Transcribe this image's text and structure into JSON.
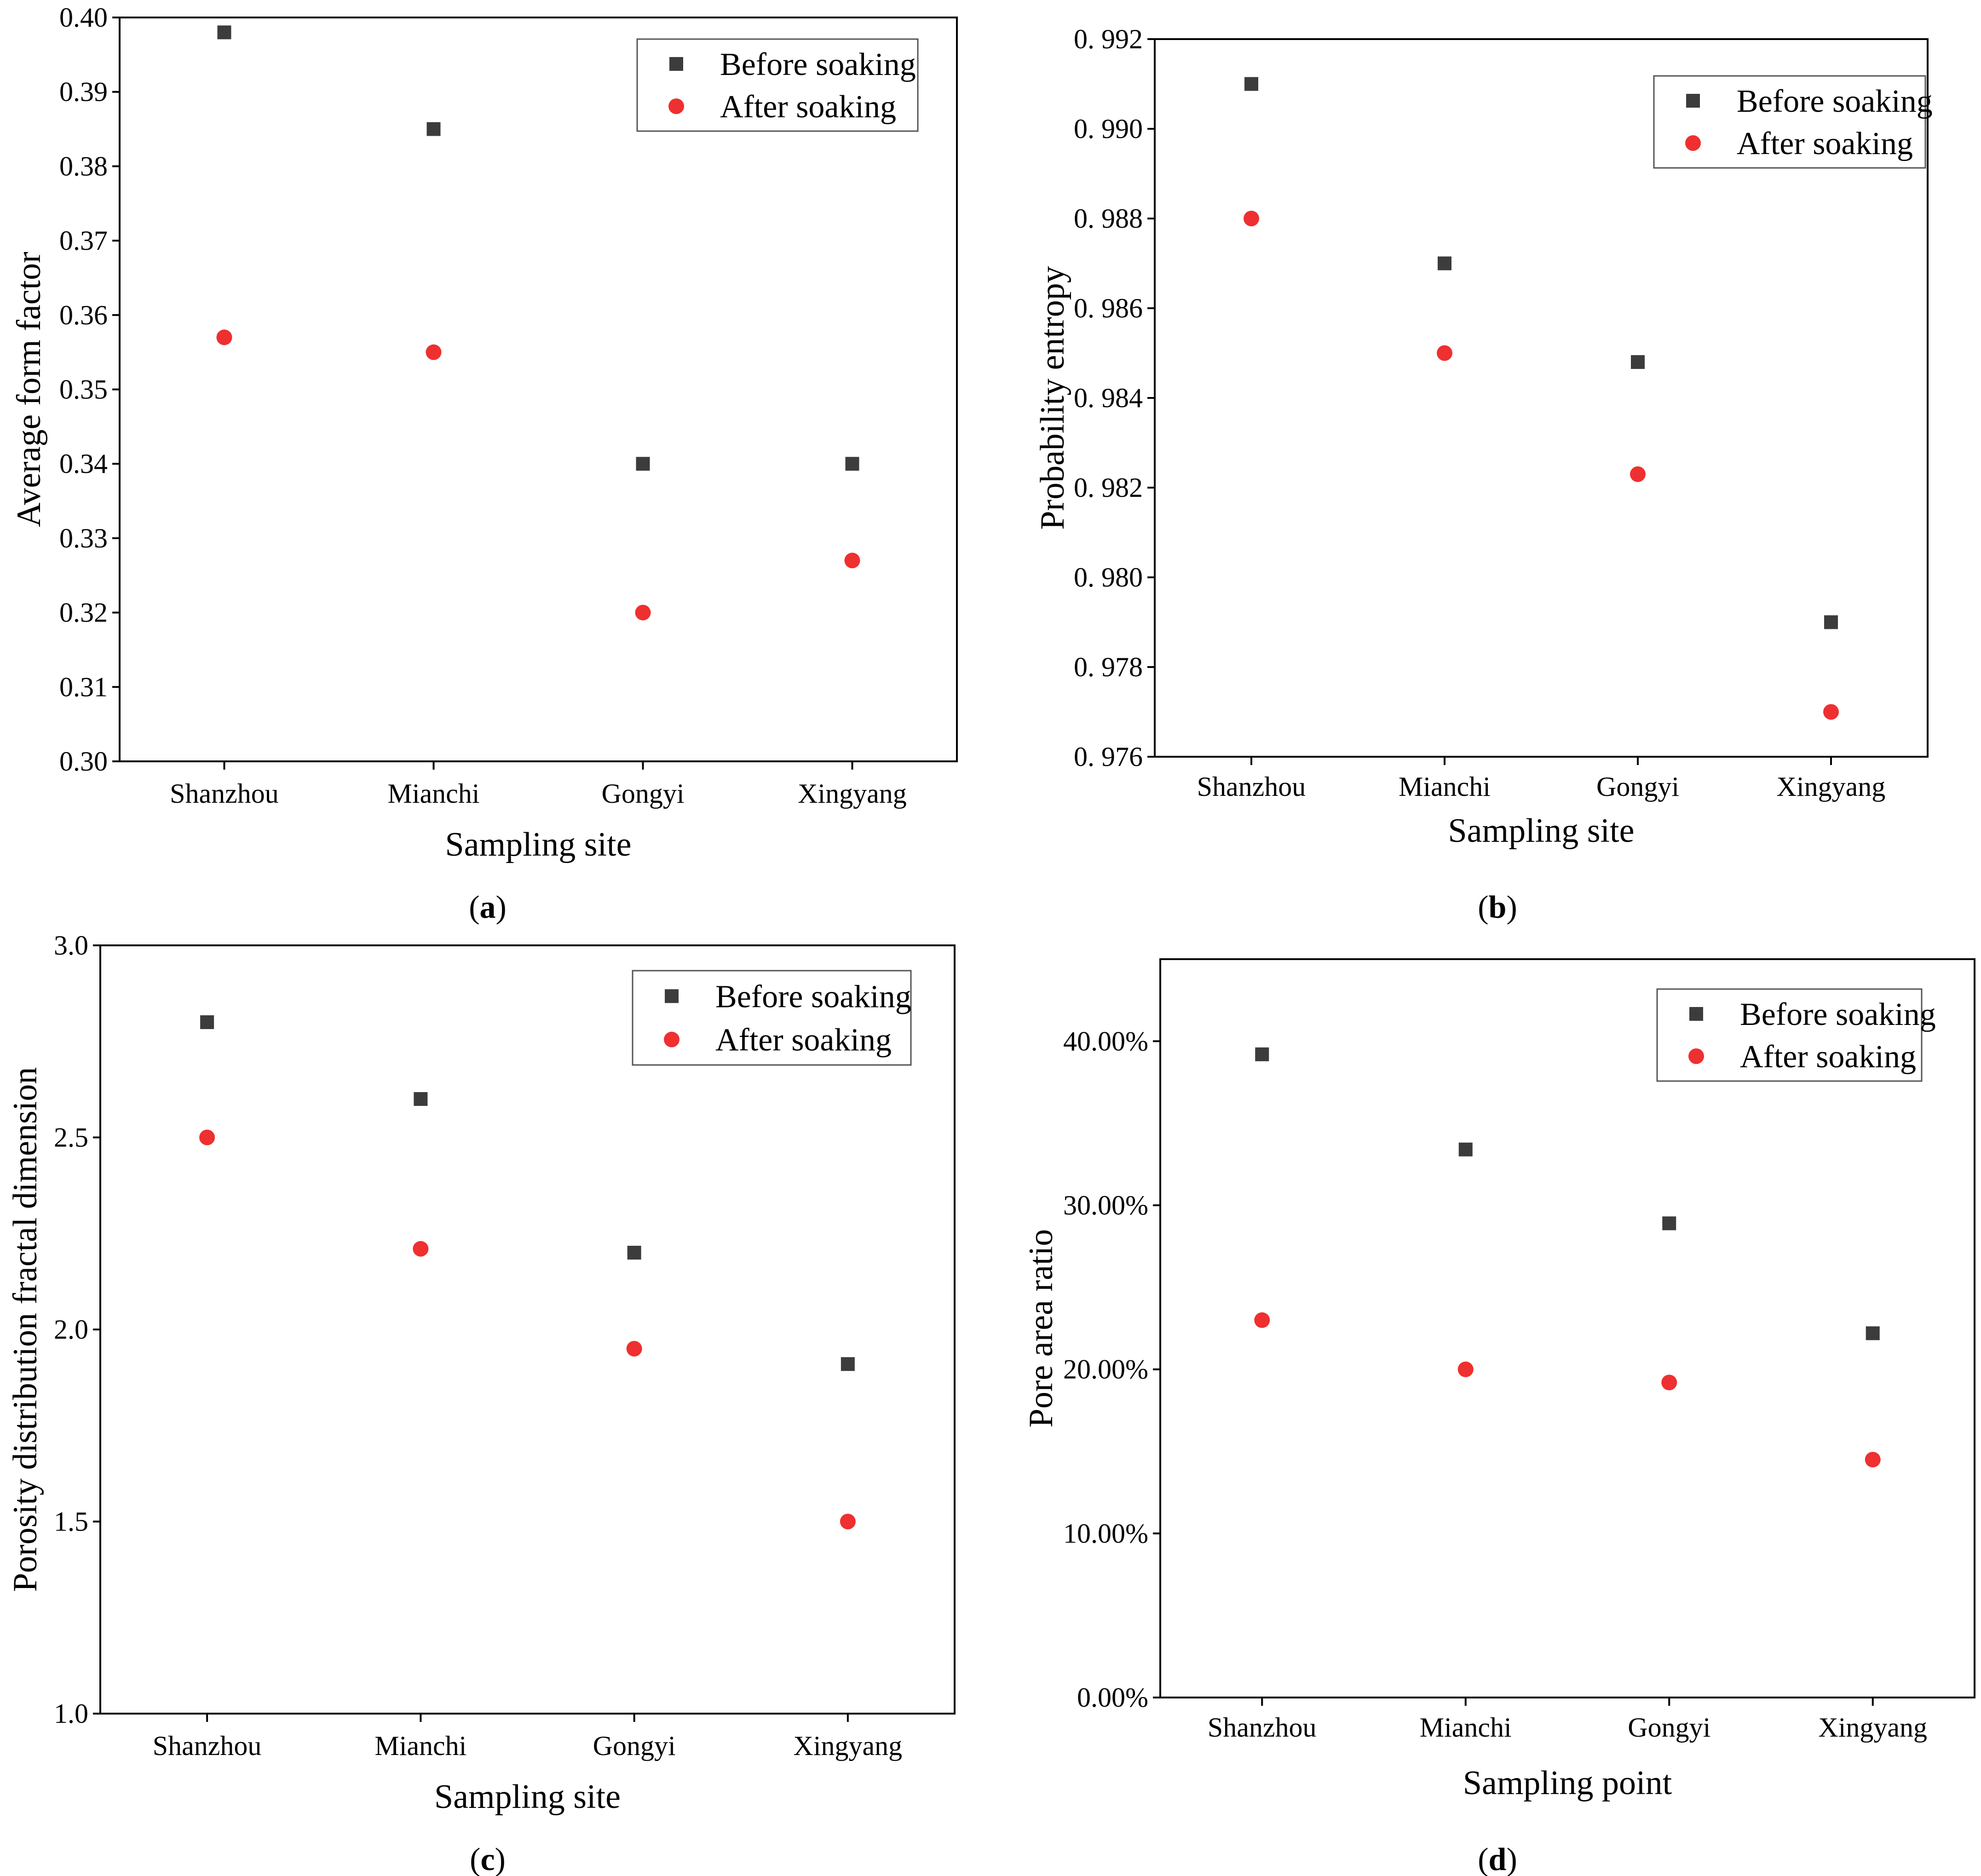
{
  "figure": {
    "colors": {
      "before": "#3c3c3c",
      "after": "#ee3030",
      "axis": "#000000"
    }
  },
  "chart_data": [
    {
      "type": "scatter",
      "caption": "(a)",
      "caption_letter": "a",
      "xlabel": "Sampling site",
      "ylabel": "Average form factor",
      "categories": [
        "Shanzhou",
        "Mianchi",
        "Gongyi",
        "Xingyang"
      ],
      "ylim": [
        0.3,
        0.4
      ],
      "yticks": [
        0.3,
        0.31,
        0.32,
        0.33,
        0.34,
        0.35,
        0.36,
        0.37,
        0.38,
        0.39,
        0.4
      ],
      "ytick_labels": [
        "0.30",
        "0.31",
        "0.32",
        "0.33",
        "0.34",
        "0.35",
        "0.36",
        "0.37",
        "0.38",
        "0.39",
        "0.40"
      ],
      "legend_position": "top-right",
      "series": [
        {
          "name": "Before soaking",
          "marker": "square",
          "values": [
            0.398,
            0.385,
            0.34,
            0.34
          ]
        },
        {
          "name": "After soaking",
          "marker": "circle",
          "values": [
            0.357,
            0.355,
            0.32,
            0.327
          ]
        }
      ]
    },
    {
      "type": "scatter",
      "caption": "(b)",
      "caption_letter": "b",
      "xlabel": "Sampling site",
      "ylabel": "Probability entropy",
      "categories": [
        "Shanzhou",
        "Mianchi",
        "Gongyi",
        "Xingyang"
      ],
      "ylim": [
        0.976,
        0.992
      ],
      "yticks": [
        0.976,
        0.978,
        0.98,
        0.982,
        0.984,
        0.986,
        0.988,
        0.99,
        0.992
      ],
      "ytick_labels": [
        "0. 976",
        "0. 978",
        "0. 980",
        "0. 982",
        "0. 984",
        "0. 986",
        "0. 988",
        "0. 990",
        "0. 992"
      ],
      "legend_position": "top-right",
      "series": [
        {
          "name": "Before soaking",
          "marker": "square",
          "values": [
            0.991,
            0.987,
            0.9848,
            0.979
          ]
        },
        {
          "name": "After soaking",
          "marker": "circle",
          "values": [
            0.988,
            0.985,
            0.9823,
            0.977
          ]
        }
      ]
    },
    {
      "type": "scatter",
      "caption": "(c)",
      "caption_letter": "c",
      "xlabel": "Sampling site",
      "ylabel": "Porosity distribution fractal dimension",
      "categories": [
        "Shanzhou",
        "Mianchi",
        "Gongyi",
        "Xingyang"
      ],
      "ylim": [
        1.0,
        3.0
      ],
      "yticks": [
        1.0,
        1.5,
        2.0,
        2.5,
        3.0
      ],
      "ytick_labels": [
        "1.0",
        "1.5",
        "2.0",
        "2.5",
        "3.0"
      ],
      "legend_position": "top-right",
      "series": [
        {
          "name": "Before soaking",
          "marker": "square",
          "values": [
            2.8,
            2.6,
            2.2,
            1.91
          ]
        },
        {
          "name": "After soaking",
          "marker": "circle",
          "values": [
            2.5,
            2.21,
            1.95,
            1.5
          ]
        }
      ]
    },
    {
      "type": "scatter",
      "caption": "(d)",
      "caption_letter": "d",
      "xlabel": "Sampling point",
      "ylabel": "Pore area ratio",
      "categories": [
        "Shanzhou",
        "Mianchi",
        "Gongyi",
        "Xingyang"
      ],
      "ylim": [
        0,
        45
      ],
      "yticks": [
        0,
        10,
        20,
        30,
        40
      ],
      "ytick_labels": [
        "0.00%",
        "10.00%",
        "20.00%",
        "30.00%",
        "40.00%"
      ],
      "legend_position": "top-right",
      "series": [
        {
          "name": "Before soaking",
          "marker": "square",
          "values": [
            39.2,
            33.4,
            28.9,
            22.2
          ]
        },
        {
          "name": "After soaking",
          "marker": "circle",
          "values": [
            23.0,
            20.0,
            19.2,
            14.5
          ]
        }
      ]
    }
  ]
}
